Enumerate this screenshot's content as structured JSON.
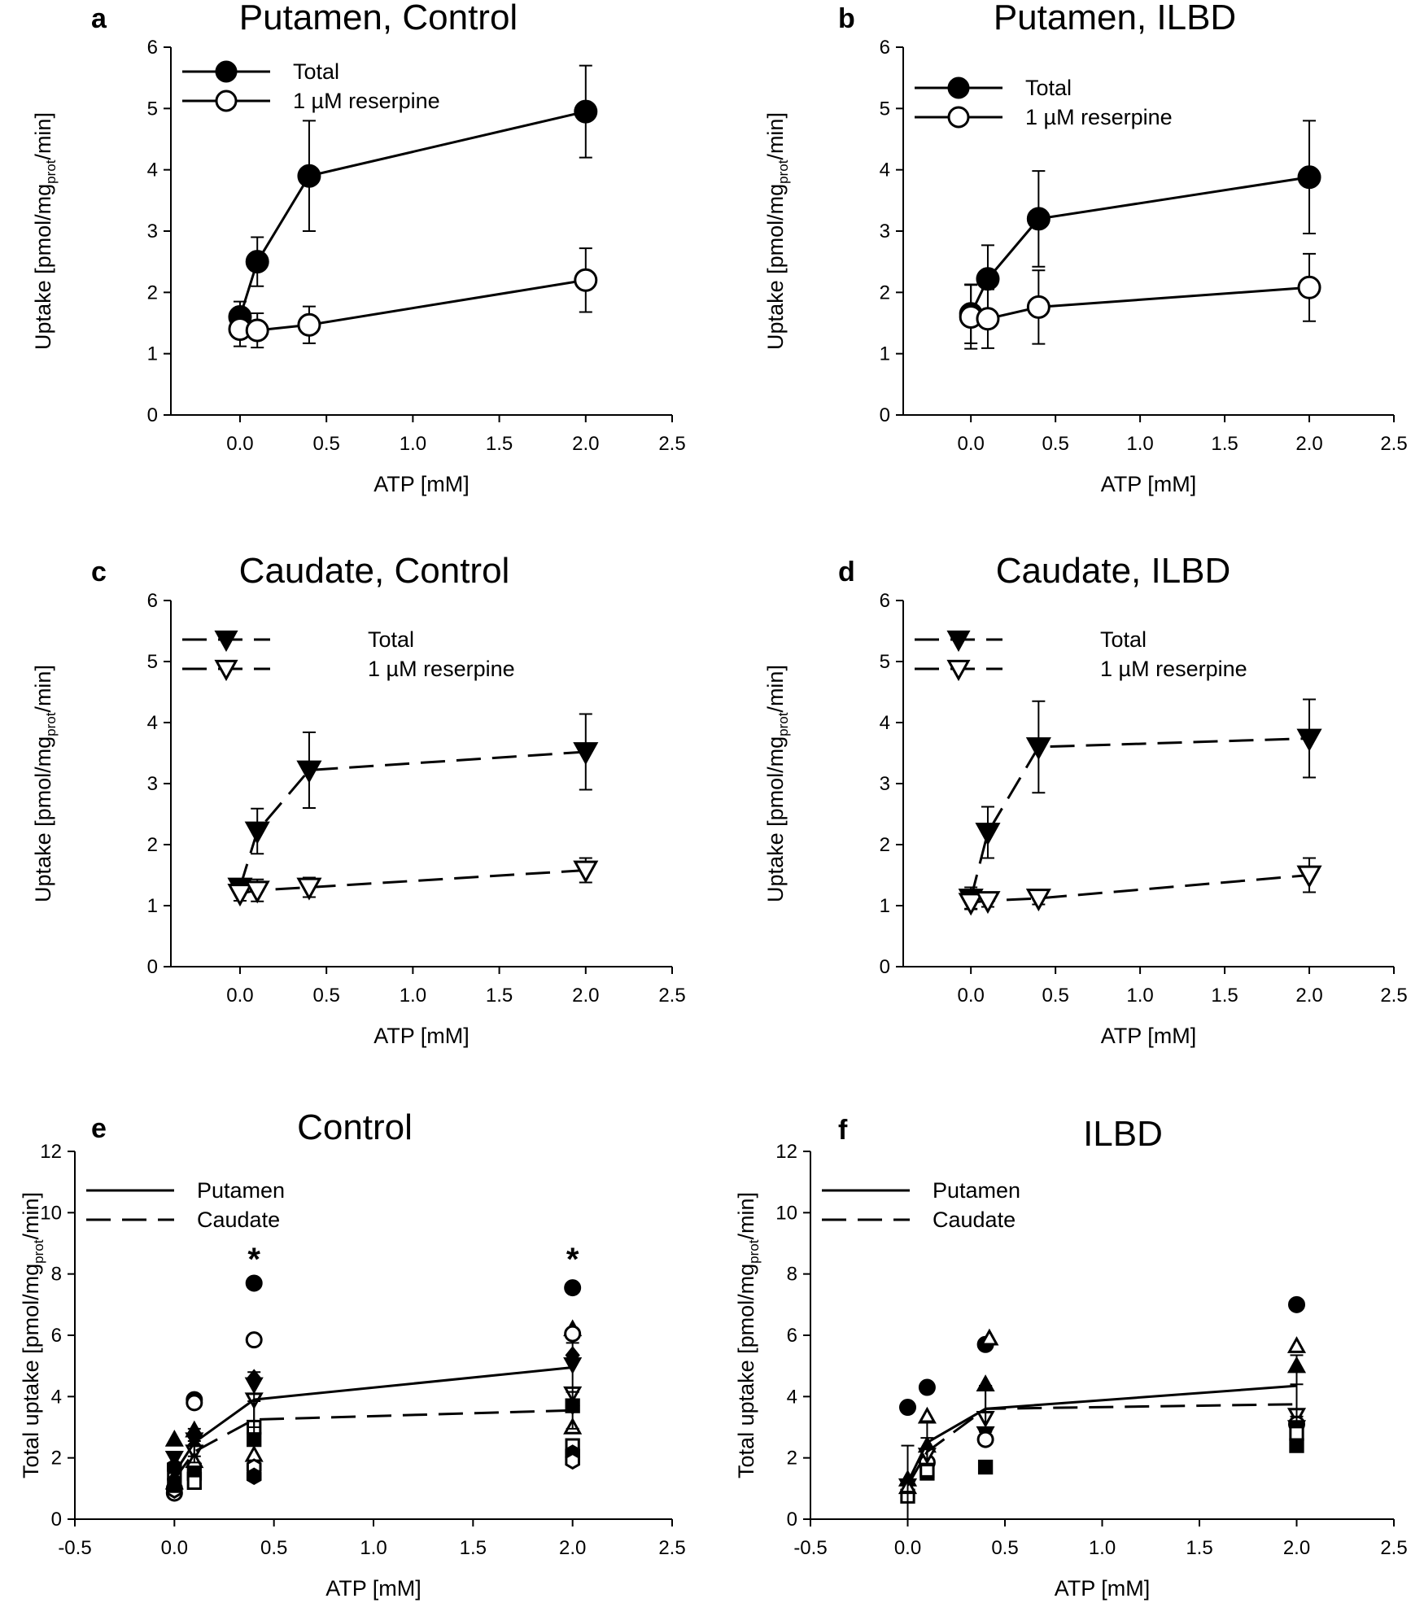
{
  "chart_data": [
    {
      "panel": "a",
      "title": "Putamen, Control",
      "type": "line",
      "xlabel": "ATP [mM]",
      "ylabel": "Uptake [pmol/mgprot/min]",
      "ylabel_parts": [
        "Uptake [pmol/mg",
        "prot",
        "/min]"
      ],
      "xlim": [
        -0.4,
        2.5
      ],
      "ylim": [
        0,
        6
      ],
      "xticks": [
        "0.0",
        "0.5",
        "1.0",
        "1.5",
        "2.0",
        "2.5"
      ],
      "yticks": [
        "0",
        "1",
        "2",
        "3",
        "4",
        "5",
        "6"
      ],
      "legend": "top-left",
      "series": [
        {
          "name": "Total",
          "marker": "circle-filled",
          "dash": false,
          "x": [
            0,
            0.1,
            0.4,
            2.0
          ],
          "y": [
            1.6,
            2.5,
            3.9,
            4.95
          ],
          "err": [
            0.25,
            0.4,
            0.9,
            0.75
          ]
        },
        {
          "name": "1 µM reserpine",
          "marker": "circle-open",
          "dash": false,
          "x": [
            0,
            0.1,
            0.4,
            2.0
          ],
          "y": [
            1.4,
            1.38,
            1.47,
            2.2
          ],
          "err": [
            0.28,
            0.28,
            0.3,
            0.52
          ]
        }
      ]
    },
    {
      "panel": "b",
      "title": "Putamen, ILBD",
      "type": "line",
      "xlabel": "ATP [mM]",
      "ylabel": "Uptake [pmol/mgprot/min]",
      "ylabel_parts": [
        "Uptake [pmol/mg",
        "prot",
        "/min]"
      ],
      "xlim": [
        -0.4,
        2.5
      ],
      "ylim": [
        0,
        6
      ],
      "xticks": [
        "0.0",
        "0.5",
        "1.0",
        "1.5",
        "2.0",
        "2.5"
      ],
      "yticks": [
        "0",
        "1",
        "2",
        "3",
        "4",
        "5",
        "6"
      ],
      "legend": "top-left",
      "series": [
        {
          "name": "Total",
          "marker": "circle-filled",
          "dash": false,
          "x": [
            0,
            0.1,
            0.4,
            2.0
          ],
          "y": [
            1.65,
            2.22,
            3.2,
            3.88
          ],
          "err": [
            0.48,
            0.55,
            0.78,
            0.92
          ]
        },
        {
          "name": "1 µM reserpine",
          "marker": "circle-open",
          "dash": false,
          "x": [
            0,
            0.1,
            0.4,
            2.0
          ],
          "y": [
            1.6,
            1.57,
            1.76,
            2.08
          ],
          "err": [
            0.52,
            0.48,
            0.6,
            0.55
          ]
        }
      ]
    },
    {
      "panel": "c",
      "title": "Caudate, Control",
      "type": "line",
      "xlabel": "ATP [mM]",
      "ylabel": "Uptake [pmol/mgprot/min]",
      "ylabel_parts": [
        "Uptake [pmol/mg",
        "prot",
        "/min]"
      ],
      "xlim": [
        -0.4,
        2.5
      ],
      "ylim": [
        0,
        6
      ],
      "xticks": [
        "0.0",
        "0.5",
        "1.0",
        "1.5",
        "2.0",
        "2.5"
      ],
      "yticks": [
        "0",
        "1",
        "2",
        "3",
        "4",
        "5",
        "6"
      ],
      "legend": "top-left",
      "series": [
        {
          "name": "Total",
          "marker": "triangle-down-filled",
          "dash": true,
          "x": [
            0,
            0.1,
            0.4,
            2.0
          ],
          "y": [
            1.3,
            2.22,
            3.22,
            3.52
          ],
          "err": [
            0.1,
            0.37,
            0.62,
            0.62
          ]
        },
        {
          "name": "1 µM reserpine",
          "marker": "triangle-down-open",
          "dash": true,
          "x": [
            0,
            0.1,
            0.4,
            2.0
          ],
          "y": [
            1.2,
            1.25,
            1.3,
            1.58
          ],
          "err": [
            0.12,
            0.18,
            0.16,
            0.2
          ]
        }
      ]
    },
    {
      "panel": "d",
      "title": "Caudate, ILBD",
      "type": "line",
      "xlabel": "ATP [mM]",
      "ylabel": "Uptake [pmol/mgprot/min]",
      "ylabel_parts": [
        "Uptake [pmol/mg",
        "prot",
        "/min]"
      ],
      "xlim": [
        -0.4,
        2.5
      ],
      "ylim": [
        0,
        6
      ],
      "xticks": [
        "0.0",
        "0.5",
        "1.0",
        "1.5",
        "2.0",
        "2.5"
      ],
      "yticks": [
        "0",
        "1",
        "2",
        "3",
        "4",
        "5",
        "6"
      ],
      "legend": "top-left",
      "series": [
        {
          "name": "Total",
          "marker": "triangle-down-filled",
          "dash": true,
          "x": [
            0,
            0.1,
            0.4,
            2.0
          ],
          "y": [
            1.12,
            2.2,
            3.6,
            3.74
          ],
          "err": [
            0.18,
            0.42,
            0.75,
            0.64
          ]
        },
        {
          "name": "1 µM reserpine",
          "marker": "triangle-down-open",
          "dash": true,
          "x": [
            0,
            0.1,
            0.4,
            2.0
          ],
          "y": [
            1.05,
            1.08,
            1.12,
            1.5
          ],
          "err": [
            0.1,
            0.1,
            0.1,
            0.28
          ]
        }
      ]
    },
    {
      "panel": "e",
      "title": "Control",
      "type": "scatter",
      "xlabel": "ATP [mM]",
      "ylabel": "Total uptake [pmol/mgprot/min]",
      "ylabel_parts": [
        "Total uptake [pmol/mg",
        "prot",
        "/min]"
      ],
      "xlim": [
        -0.5,
        2.5
      ],
      "ylim": [
        0,
        12
      ],
      "xticks": [
        "-0.5",
        "0.0",
        "0.5",
        "1.0",
        "1.5",
        "2.0",
        "2.5"
      ],
      "yticks": [
        "0",
        "2",
        "4",
        "6",
        "8",
        "10",
        "12"
      ],
      "legend": "top-left",
      "significance": [
        {
          "x": 0.4,
          "y": 8.6,
          "label": "*"
        },
        {
          "x": 2.0,
          "y": 8.6,
          "label": "*"
        }
      ],
      "series": [
        {
          "name": "Putamen",
          "dash": false,
          "x": [
            0,
            0.1,
            0.4,
            2.0
          ],
          "y": [
            1.5,
            2.5,
            3.9,
            4.95
          ],
          "err": [
            0.3,
            0.45,
            0.9,
            0.8
          ]
        },
        {
          "name": "Caudate",
          "dash": true,
          "x": [
            0,
            0.1,
            0.4,
            2.0
          ],
          "y": [
            1.3,
            2.2,
            3.25,
            3.55
          ],
          "err": [
            0.2,
            0.35,
            0.6,
            0.6
          ]
        }
      ],
      "points": [
        {
          "m": "circle-filled",
          "x": 0.0,
          "y": 1.0
        },
        {
          "m": "circle-open",
          "x": 0.0,
          "y": 0.85
        },
        {
          "m": "triangle-up-filled",
          "x": 0.0,
          "y": 2.6
        },
        {
          "m": "triangle-down-filled",
          "x": 0.0,
          "y": 2.0
        },
        {
          "m": "square-open",
          "x": 0.0,
          "y": 1.5
        },
        {
          "m": "diamond-filled",
          "x": 0.0,
          "y": 1.3
        },
        {
          "m": "hexagon-filled",
          "x": 0.0,
          "y": 1.7
        },
        {
          "m": "hexagon-open",
          "x": 0.0,
          "y": 0.95
        },
        {
          "m": "triangle-up-open",
          "x": 0.0,
          "y": 1.2
        },
        {
          "m": "square-filled",
          "x": 0.0,
          "y": 1.1
        },
        {
          "m": "circle-filled",
          "x": 0.1,
          "y": 3.9
        },
        {
          "m": "circle-open",
          "x": 0.1,
          "y": 3.8
        },
        {
          "m": "triangle-up-filled",
          "x": 0.1,
          "y": 2.9
        },
        {
          "m": "diamond-filled",
          "x": 0.1,
          "y": 2.4
        },
        {
          "m": "triangle-down-filled",
          "x": 0.1,
          "y": 2.6
        },
        {
          "m": "square-filled",
          "x": 0.1,
          "y": 1.6
        },
        {
          "m": "hexagon-filled",
          "x": 0.1,
          "y": 1.4
        },
        {
          "m": "triangle-down-open",
          "x": 0.1,
          "y": 2.2
        },
        {
          "m": "triangle-up-open",
          "x": 0.1,
          "y": 1.9
        },
        {
          "m": "square-open",
          "x": 0.1,
          "y": 1.2
        },
        {
          "m": "circle-filled",
          "x": 0.4,
          "y": 7.7
        },
        {
          "m": "circle-open",
          "x": 0.4,
          "y": 5.85
        },
        {
          "m": "diamond-filled",
          "x": 0.4,
          "y": 4.6
        },
        {
          "m": "triangle-down-filled",
          "x": 0.4,
          "y": 4.4
        },
        {
          "m": "triangle-down-open",
          "x": 0.4,
          "y": 3.9
        },
        {
          "m": "square-filled",
          "x": 0.4,
          "y": 2.6
        },
        {
          "m": "triangle-up-open",
          "x": 0.4,
          "y": 2.1
        },
        {
          "m": "hexagon-open",
          "x": 0.4,
          "y": 1.7
        },
        {
          "m": "hexagon-filled",
          "x": 0.4,
          "y": 1.4
        },
        {
          "m": "square-open",
          "x": 0.4,
          "y": 3.0
        },
        {
          "m": "circle-filled",
          "x": 2.0,
          "y": 7.55
        },
        {
          "m": "triangle-up-filled",
          "x": 2.0,
          "y": 6.2
        },
        {
          "m": "circle-open",
          "x": 2.0,
          "y": 6.05
        },
        {
          "m": "diamond-filled",
          "x": 2.0,
          "y": 5.35
        },
        {
          "m": "triangle-down-filled",
          "x": 2.0,
          "y": 5.05
        },
        {
          "m": "triangle-down-open",
          "x": 2.0,
          "y": 4.1
        },
        {
          "m": "diamond-open",
          "x": 2.0,
          "y": 3.7
        },
        {
          "m": "square-filled",
          "x": 2.0,
          "y": 3.7
        },
        {
          "m": "triangle-up-open",
          "x": 2.0,
          "y": 3.0
        },
        {
          "m": "square-open",
          "x": 2.0,
          "y": 2.4
        },
        {
          "m": "hexagon-filled",
          "x": 2.0,
          "y": 2.15
        },
        {
          "m": "hexagon-open",
          "x": 2.0,
          "y": 1.9
        }
      ]
    },
    {
      "panel": "f",
      "title": "ILBD",
      "type": "scatter",
      "xlabel": "ATP [mM]",
      "ylabel": "Total uptake [pmol/mgprot/min]",
      "ylabel_parts": [
        "Total uptake [pmol/mg",
        "prot",
        "/min]"
      ],
      "xlim": [
        -0.5,
        2.5
      ],
      "ylim": [
        0,
        12
      ],
      "xticks": [
        "-0.5",
        "0.0",
        "0.5",
        "1.0",
        "1.5",
        "2.0",
        "2.5"
      ],
      "yticks": [
        "0",
        "2",
        "4",
        "6",
        "8",
        "10",
        "12"
      ],
      "legend": "top-left",
      "significance": [],
      "series": [
        {
          "name": "Putamen",
          "dash": false,
          "x": [
            0,
            0.1,
            0.4,
            2.0
          ],
          "y": [
            1.2,
            2.5,
            3.6,
            4.35
          ],
          "err": [
            1.2,
            0.7,
            0.75,
            1.0
          ]
        },
        {
          "name": "Caudate",
          "dash": true,
          "x": [
            0,
            0.1,
            0.4,
            2.0
          ],
          "y": [
            1.1,
            2.2,
            3.6,
            3.75
          ],
          "err": [
            0.2,
            0.45,
            0.75,
            0.65
          ]
        }
      ],
      "points": [
        {
          "m": "circle-filled",
          "x": 0.0,
          "y": 3.65
        },
        {
          "m": "square-open",
          "x": 0.0,
          "y": 0.75
        },
        {
          "m": "triangle-up-filled",
          "x": 0.0,
          "y": 1.3
        },
        {
          "m": "triangle-down-filled",
          "x": 0.0,
          "y": 1.1
        },
        {
          "m": "triangle-up-open",
          "x": 0.0,
          "y": 1.05
        },
        {
          "m": "circle-filled",
          "x": 0.1,
          "y": 4.3
        },
        {
          "m": "triangle-up-open",
          "x": 0.1,
          "y": 3.35
        },
        {
          "m": "triangle-up-filled",
          "x": 0.1,
          "y": 2.4
        },
        {
          "m": "circle-open",
          "x": 0.1,
          "y": 1.85
        },
        {
          "m": "square-filled",
          "x": 0.1,
          "y": 1.5
        },
        {
          "m": "triangle-down-open",
          "x": 0.1,
          "y": 2.1
        },
        {
          "m": "square-open",
          "x": 0.1,
          "y": 1.6
        },
        {
          "m": "circle-filled",
          "x": 0.4,
          "y": 5.7
        },
        {
          "m": "triangle-up-open",
          "x": 0.42,
          "y": 5.9
        },
        {
          "m": "triangle-up-filled",
          "x": 0.4,
          "y": 4.4
        },
        {
          "m": "triangle-down-open",
          "x": 0.4,
          "y": 3.3
        },
        {
          "m": "triangle-down-filled",
          "x": 0.4,
          "y": 2.8
        },
        {
          "m": "circle-open",
          "x": 0.4,
          "y": 2.6
        },
        {
          "m": "square-filled",
          "x": 0.4,
          "y": 1.7
        },
        {
          "m": "circle-filled",
          "x": 2.0,
          "y": 7.0
        },
        {
          "m": "triangle-up-open",
          "x": 2.0,
          "y": 5.65
        },
        {
          "m": "triangle-up-filled",
          "x": 2.0,
          "y": 5.0
        },
        {
          "m": "triangle-down-open",
          "x": 2.0,
          "y": 3.4
        },
        {
          "m": "circle-open",
          "x": 2.0,
          "y": 3.1
        },
        {
          "m": "triangle-down-filled",
          "x": 2.0,
          "y": 3.0
        },
        {
          "m": "square-open",
          "x": 2.0,
          "y": 2.8
        },
        {
          "m": "square-filled",
          "x": 2.0,
          "y": 2.4
        }
      ]
    }
  ]
}
